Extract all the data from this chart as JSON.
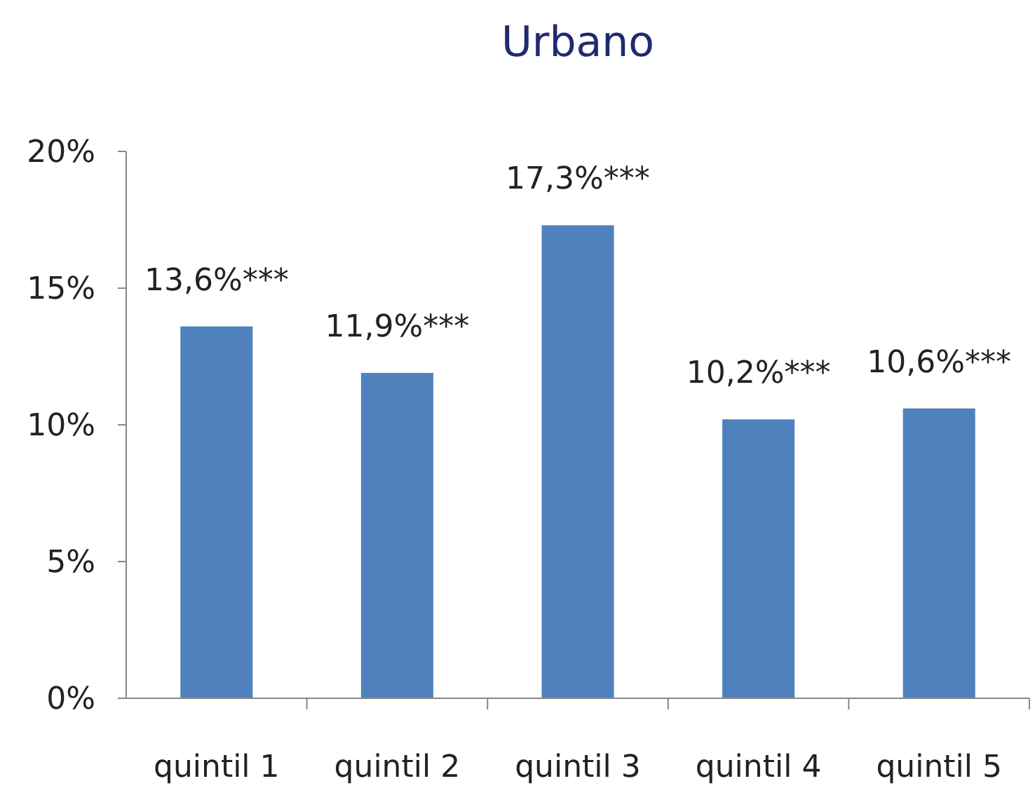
{
  "chart_data": {
    "type": "bar",
    "title": "Urbano",
    "categories": [
      "quintil 1",
      "quintil 2",
      "quintil 3",
      "quintil 4",
      "quintil 5"
    ],
    "values": [
      13.6,
      11.9,
      17.3,
      10.2,
      10.6
    ],
    "value_labels": [
      "13,6%***",
      "11,9%***",
      "17,3%***",
      "10,2%***",
      "10,6%***"
    ],
    "color": "#4f81bd",
    "ylim": [
      0,
      20
    ],
    "yticks": [
      {
        "value": 0,
        "label": "0%"
      },
      {
        "value": 5,
        "label": "5%"
      },
      {
        "value": 10,
        "label": "10%"
      },
      {
        "value": 15,
        "label": "15%"
      },
      {
        "value": 20,
        "label": "20%"
      }
    ],
    "grid": false
  }
}
